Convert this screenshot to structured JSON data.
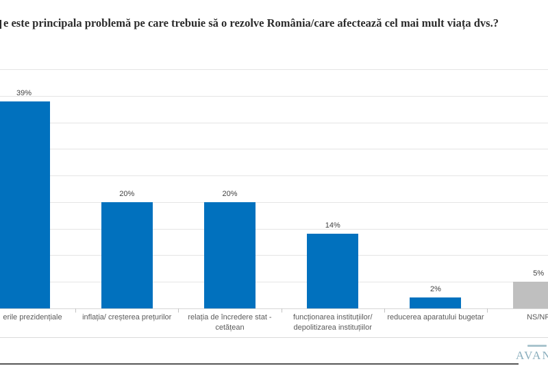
{
  "title": "e este principala problemă pe care trebuie să o rezolve România/care afectează cel mai mult viața dvs.?",
  "chart_data": {
    "type": "bar",
    "title": "e este principala problemă pe care trebuie să o rezolve România/care afectează cel mai mult viața dvs.?",
    "categories": [
      "erile prezidențiale",
      "inflația/ creșterea prețurilor",
      "relația de încredere stat - cetățean",
      "funcționarea instituțiilor/ depolitizarea instituțiilor",
      "reducerea aparatului bugetar",
      "NS/NR"
    ],
    "values": [
      39,
      20,
      20,
      14,
      2,
      5
    ],
    "data_labels": [
      "39%",
      "20%",
      "20%",
      "14%",
      "2%",
      "5%"
    ],
    "value_label_suffix": "%",
    "bar_colors": [
      "#0171be",
      "#0171be",
      "#0171be",
      "#0171be",
      "#0171be",
      "#bfbfbf"
    ],
    "xlabel": "",
    "ylabel": "",
    "ylim": [
      0,
      45
    ],
    "gridline_interval_percent": 5,
    "grid": "horizontal",
    "legend": "none",
    "accent_blue": "#0171be",
    "neutral_gray": "#bfbfbf"
  },
  "footer": {
    "logo_text": "AVAN"
  }
}
